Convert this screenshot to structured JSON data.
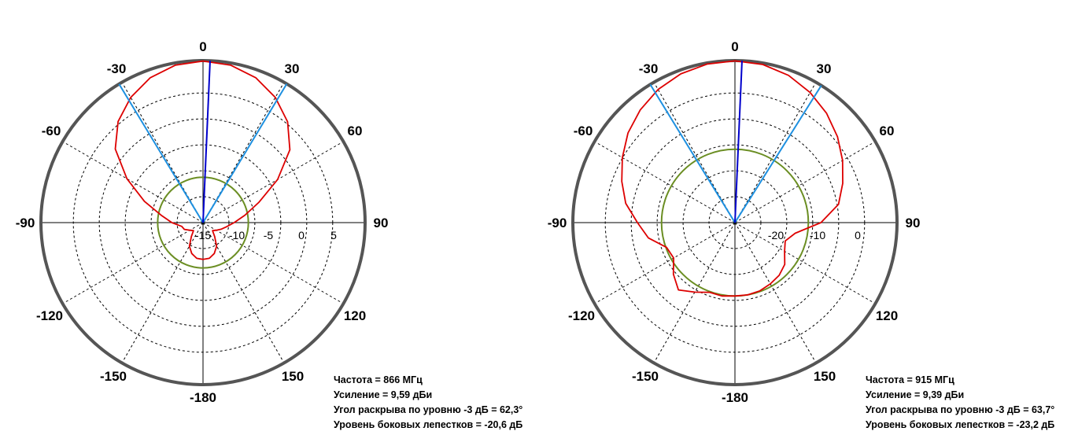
{
  "chart_data": [
    {
      "type": "polar",
      "angle_labels": [
        "0",
        "30",
        "60",
        "90",
        "120",
        "150",
        "-180",
        "-150",
        "-120",
        "-90",
        "-60",
        "-30"
      ],
      "radial_ticks": [
        "-15",
        "-10",
        "-5",
        "0",
        "5"
      ],
      "radial_range_db": [
        -19,
        9.59
      ],
      "info": {
        "freq": "Частота = 866 МГц",
        "gain": "Усиление = 9,59 дБи",
        "beam": "Угол раскрыва по уровню -3 дБ = 62,3°",
        "side": "Уровень боковых лепестков = -20,6 дБ"
      },
      "beam_lines_deg": [
        -31.2,
        31.1
      ],
      "peak_line_deg": 2.5,
      "sidelobe_circle_db": -11.0,
      "series": [
        {
          "color": "#dd0000",
          "angles": [
            0,
            10,
            20,
            30,
            40,
            50,
            60,
            70,
            80,
            90,
            100,
            110,
            120,
            130,
            140,
            150,
            160,
            170,
            180,
            190,
            200,
            210,
            220,
            230,
            240,
            250,
            260,
            270,
            280,
            290,
            300,
            310,
            320,
            330,
            340,
            350,
            360
          ],
          "values": [
            9.5,
            9.2,
            8.2,
            6.5,
            4.2,
            1.0,
            -3.8,
            -8.5,
            -11.5,
            -13.5,
            -14.8,
            -15.6,
            -16.3,
            -16.8,
            -15.8,
            -14.2,
            -13.2,
            -12.6,
            -12.5,
            -12.6,
            -13.2,
            -14.2,
            -15.8,
            -16.8,
            -16.3,
            -15.5,
            -15.2,
            -13.5,
            -11.5,
            -8.0,
            -3.5,
            1.2,
            4.3,
            6.5,
            8.2,
            9.2,
            9.5
          ]
        }
      ]
    },
    {
      "type": "polar",
      "angle_labels": [
        "0",
        "30",
        "60",
        "90",
        "120",
        "150",
        "-180",
        "-150",
        "-120",
        "-90",
        "-60",
        "-30"
      ],
      "radial_ticks": [
        "-20",
        "-10",
        "0"
      ],
      "radial_range_db": [
        -33,
        9.39
      ],
      "info": {
        "freq": "Частота = 915 МГц",
        "gain": "Усиление = 9,39 дБи",
        "beam": "Угол раскрыва по уровню -3 дБ = 63,7°",
        "side": "Уровень боковых лепестков = -23,2 дБ"
      },
      "beam_lines_deg": [
        -31.5,
        32.2
      ],
      "peak_line_deg": 2.5,
      "sidelobe_circle_db": -13.8,
      "series": [
        {
          "color": "#dd0000",
          "angles": [
            0,
            10,
            20,
            30,
            40,
            50,
            60,
            70,
            80,
            90,
            100,
            110,
            120,
            130,
            140,
            150,
            160,
            170,
            180,
            190,
            200,
            210,
            220,
            230,
            240,
            250,
            260,
            270,
            280,
            290,
            300,
            310,
            320,
            330,
            340,
            350,
            360
          ],
          "values": [
            9.3,
            9.0,
            8.0,
            6.3,
            4.3,
            2.0,
            -0.5,
            -3.0,
            -5.5,
            -10.5,
            -17.0,
            -19.0,
            -18.0,
            -16.0,
            -15.0,
            -14.5,
            -14.0,
            -13.8,
            -13.8,
            -13.5,
            -13.6,
            -12.0,
            -10.0,
            -12.0,
            -14.5,
            -14.0,
            -10.0,
            -7.5,
            -4.0,
            -1.5,
            1.0,
            3.5,
            5.5,
            7.2,
            8.4,
            9.1,
            9.3
          ]
        }
      ]
    }
  ]
}
